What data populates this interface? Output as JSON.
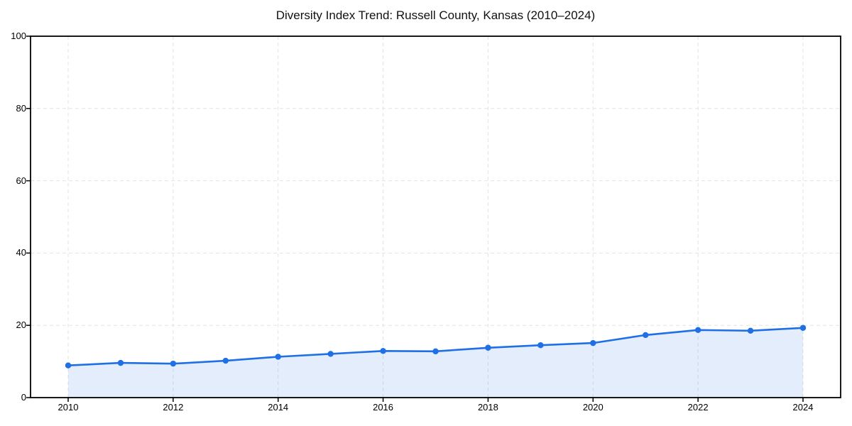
{
  "chart_data": {
    "type": "area",
    "title": "Diversity Index Trend: Russell County, Kansas (2010–2024)",
    "x": [
      2010,
      2011,
      2012,
      2013,
      2014,
      2015,
      2016,
      2017,
      2018,
      2019,
      2020,
      2021,
      2022,
      2023,
      2024
    ],
    "series": [
      {
        "name": "Diversity Index",
        "values": [
          8.9,
          9.6,
          9.4,
          10.2,
          11.3,
          12.1,
          12.9,
          12.8,
          13.8,
          14.5,
          15.1,
          17.3,
          18.7,
          18.5,
          19.3
        ]
      }
    ],
    "xlabel": "",
    "ylabel": "",
    "ylim": [
      0,
      100
    ],
    "y_ticks": [
      0,
      20,
      40,
      60,
      80,
      100
    ],
    "x_ticks": [
      2010,
      2012,
      2014,
      2016,
      2018,
      2020,
      2022,
      2024
    ],
    "grid": "dashed",
    "legend": "none",
    "colors": {
      "line": "#1f6fe5",
      "marker": "#1f6fe5",
      "area_fill": "rgba(31, 111, 229, 0.12)",
      "gridline": "#e3e3e3",
      "spine": "#000000",
      "tick_text": "#000000",
      "title_text": "#111111",
      "background": "#ffffff"
    }
  }
}
